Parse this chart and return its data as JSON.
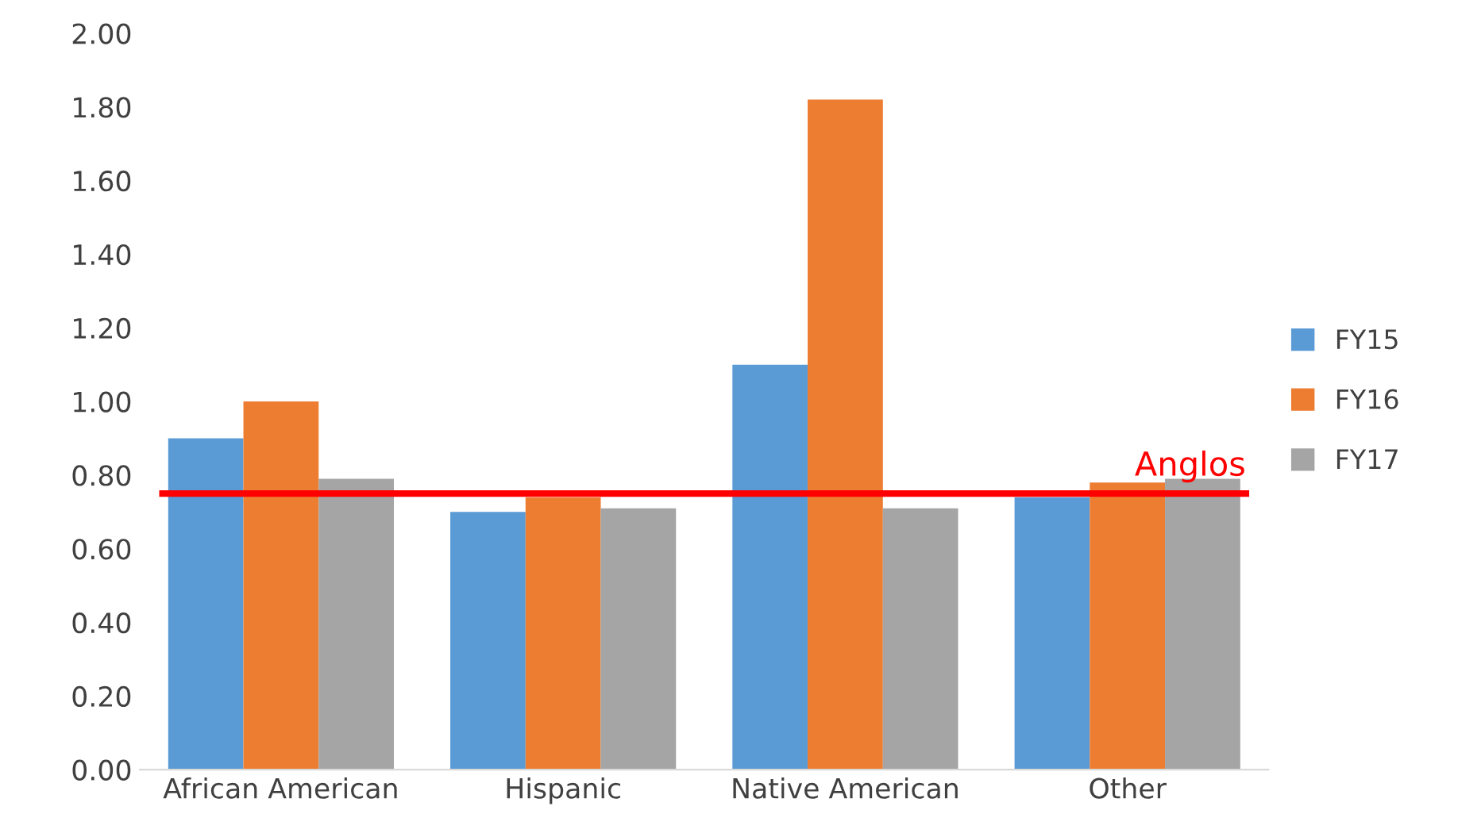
{
  "chart_data": {
    "type": "bar",
    "categories": [
      "African American",
      "Hispanic",
      "Native American",
      "Other"
    ],
    "series": [
      {
        "name": "FY15",
        "color": "#5b9bd5",
        "values": [
          0.9,
          0.7,
          1.1,
          0.74
        ]
      },
      {
        "name": "FY16",
        "color": "#ed7d31",
        "values": [
          1.0,
          0.74,
          1.82,
          0.78
        ]
      },
      {
        "name": "FY17",
        "color": "#a5a5a5",
        "values": [
          0.79,
          0.71,
          0.71,
          0.79
        ]
      }
    ],
    "ylim": [
      0,
      2
    ],
    "yticks": [
      {
        "value": 0,
        "label": "0.00"
      },
      {
        "value": 0.2,
        "label": "0.20"
      },
      {
        "value": 0.4,
        "label": "0.40"
      },
      {
        "value": 0.6,
        "label": "0.60"
      },
      {
        "value": 0.8,
        "label": "0.80"
      },
      {
        "value": 1.0,
        "label": "1.00"
      },
      {
        "value": 1.2,
        "label": "1.20"
      },
      {
        "value": 1.4,
        "label": "1.40"
      },
      {
        "value": 1.6,
        "label": "1.60"
      },
      {
        "value": 1.8,
        "label": "1.80"
      },
      {
        "value": 2.0,
        "label": "2.00"
      }
    ],
    "ref_lines": [
      {
        "axis": "y",
        "value": 0.75,
        "label": "Anglos",
        "color": "#ff0000"
      }
    ],
    "legend": "right",
    "grid": false
  }
}
